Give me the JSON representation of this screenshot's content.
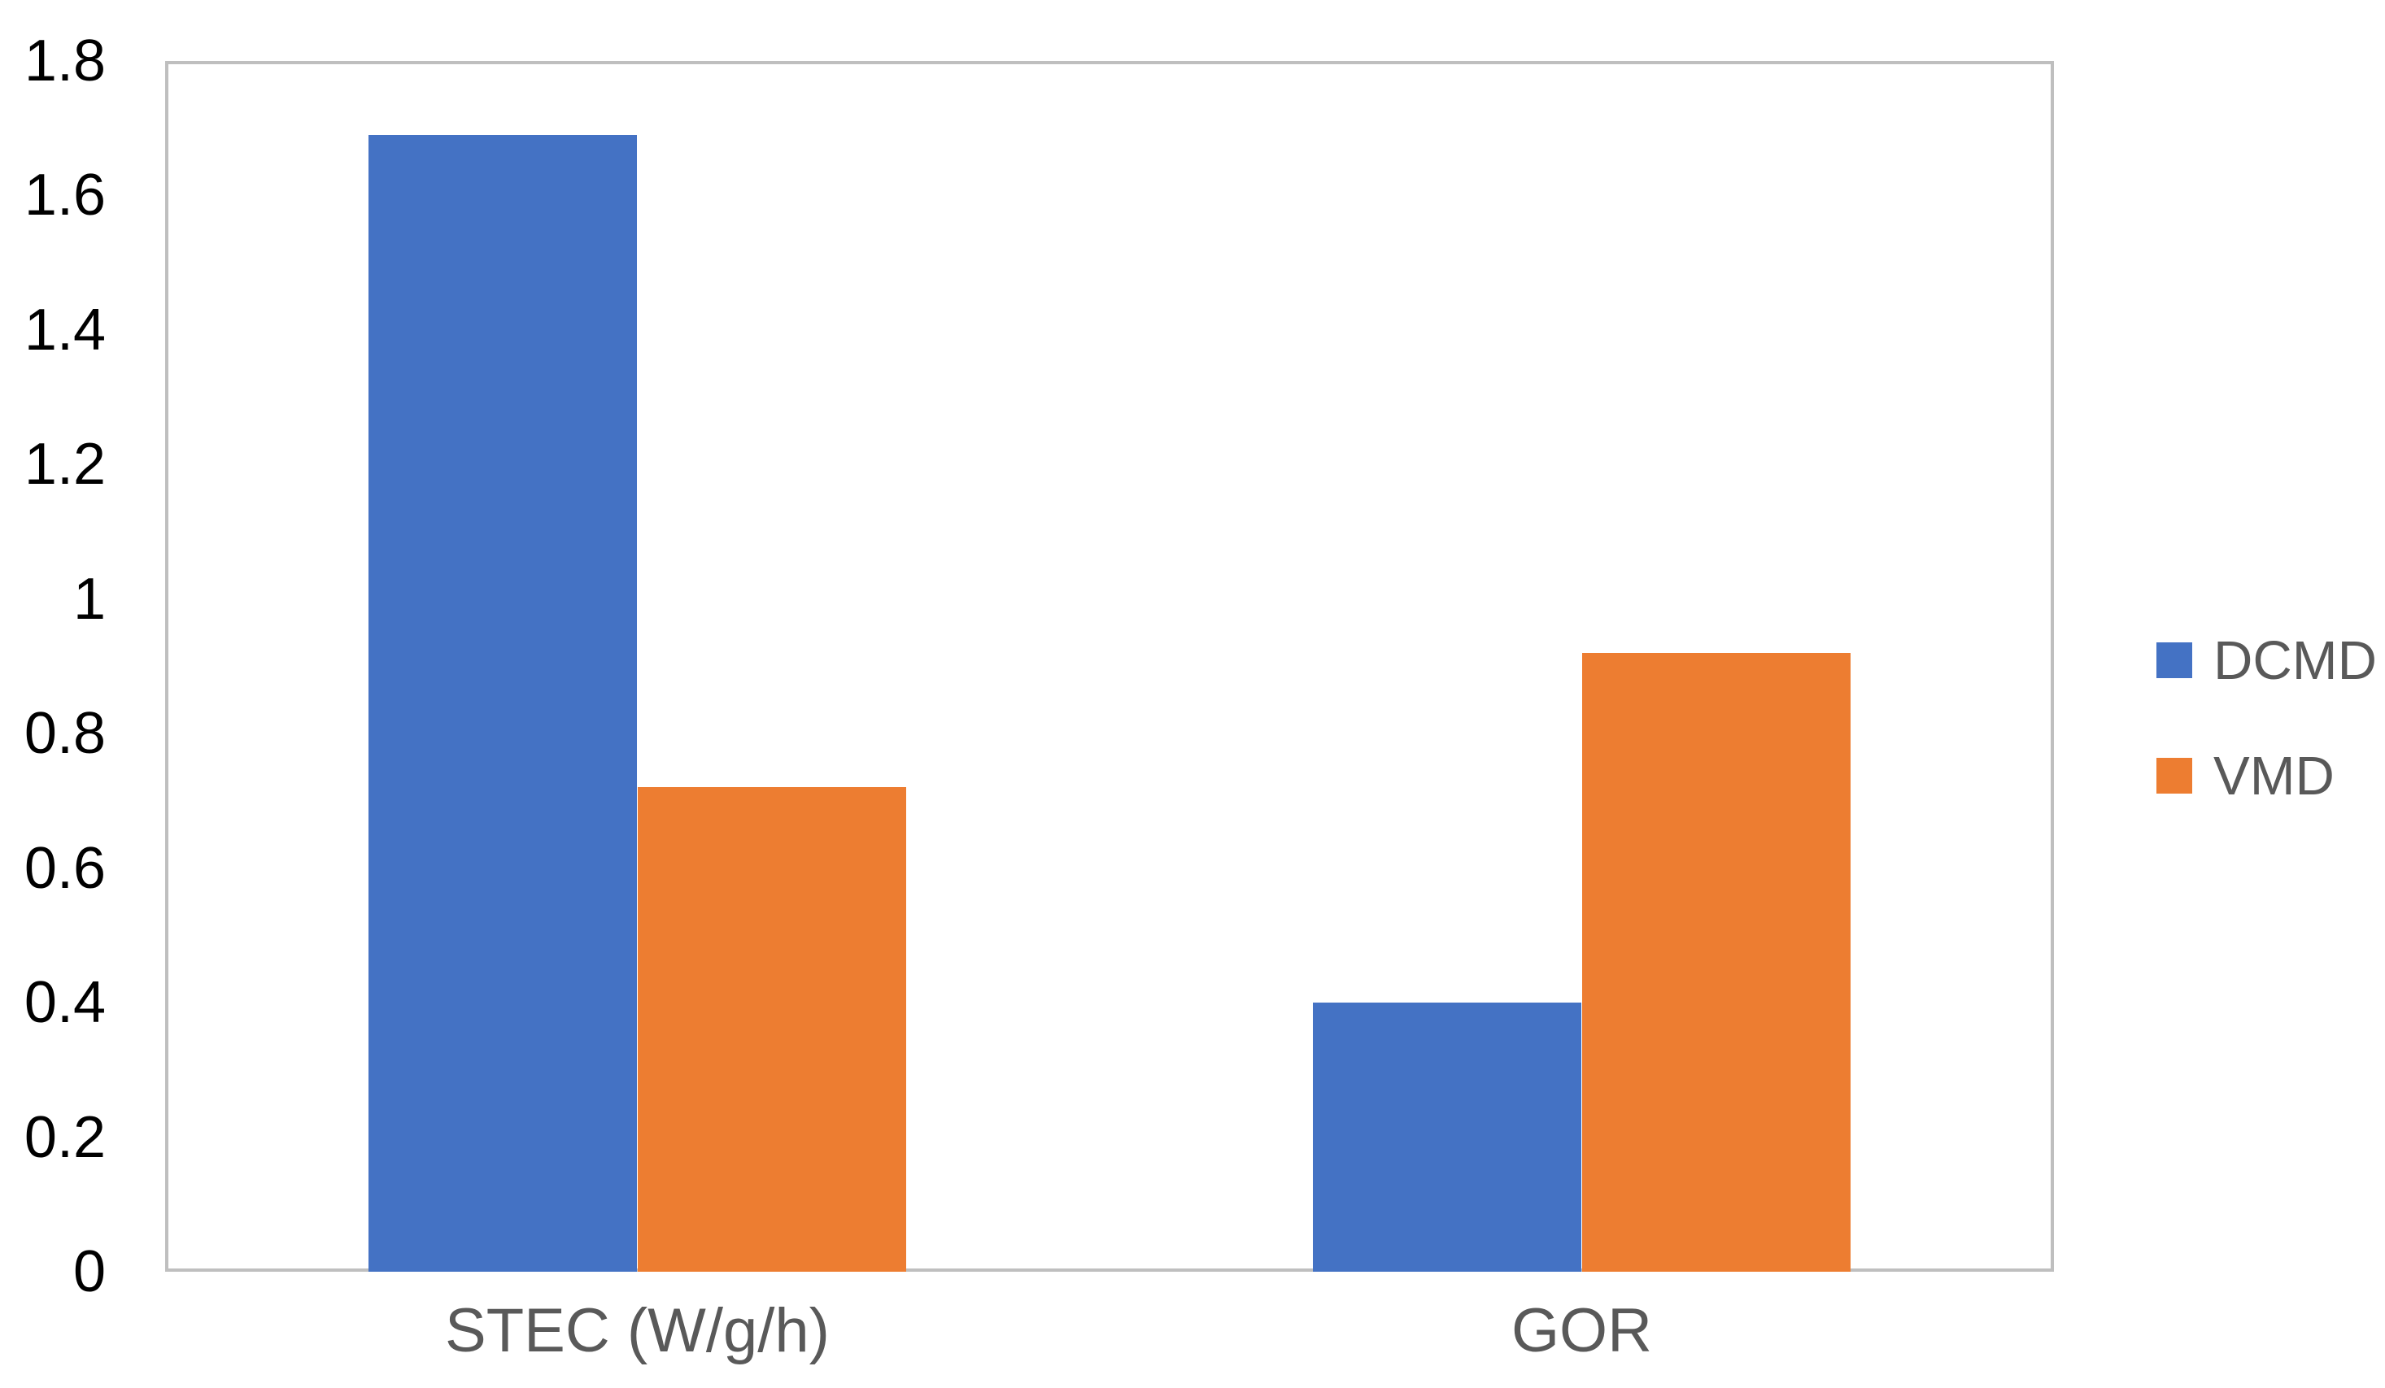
{
  "chart_data": {
    "type": "bar",
    "categories": [
      "STEC (W/g/h)",
      "GOR"
    ],
    "series": [
      {
        "name": "DCMD",
        "color": "#4472C4",
        "values": [
          1.69,
          0.4
        ]
      },
      {
        "name": "VMD",
        "color": "#ED7D31",
        "values": [
          0.72,
          0.92
        ]
      }
    ],
    "title": "",
    "xlabel": "",
    "ylabel": "",
    "ylim": [
      0,
      1.8
    ],
    "ytick_labels": [
      "0",
      "0.2",
      "0.4",
      "0.6",
      "0.8",
      "1",
      "1.2",
      "1.4",
      "1.6",
      "1.8"
    ],
    "grid": false,
    "legend_position": "right"
  },
  "colors": {
    "plot_border": "#BFBFBF",
    "tick_text": "#000000",
    "label_text": "#595959",
    "background": "#FFFFFF"
  }
}
